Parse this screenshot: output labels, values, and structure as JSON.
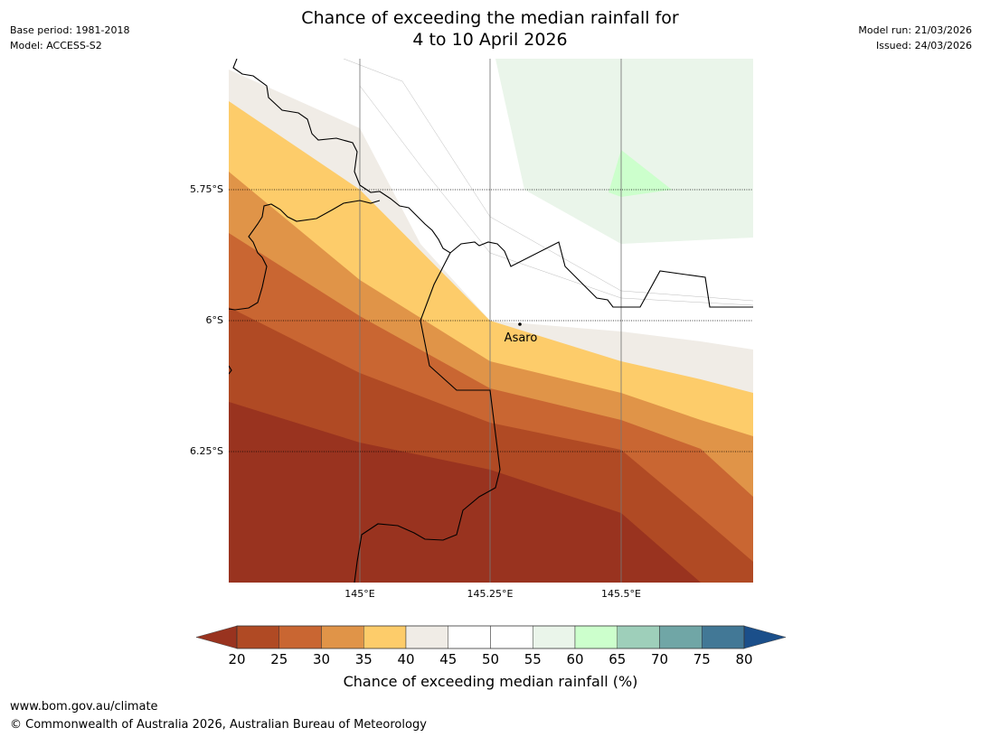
{
  "header": {
    "title_line1": "Chance of exceeding the median rainfall for",
    "title_line2": "4 to 10 April 2026",
    "base_period": "Base period: 1981-2018",
    "model": "Model: ACCESS-S2",
    "model_run": "Model run: 21/03/2026",
    "issued": "Issued: 24/03/2026"
  },
  "map": {
    "lat_labels": [
      "5.75°S",
      "6°S",
      "6.25°S"
    ],
    "lon_labels": [
      "145°E",
      "145.25°E",
      "145.5°E"
    ],
    "place_label": "Asaro"
  },
  "colorbar": {
    "label": "Chance of exceeding median rainfall (%)",
    "ticks": [
      "20",
      "25",
      "30",
      "35",
      "40",
      "45",
      "50",
      "55",
      "60",
      "65",
      "70",
      "75",
      "80"
    ],
    "colors": {
      "under": "#99331f",
      "20-25": "#b04a24",
      "25-30": "#c96632",
      "30-35": "#e09448",
      "35-40": "#fdcc6a",
      "40-45": "#f0ece6",
      "45-50": "#ffffff",
      "50-55": "#ffffff",
      "55-60": "#eaf5ea",
      "60-65": "#ccffcc",
      "65-70": "#9ecfba",
      "70-75": "#70a6a6",
      "75-80": "#427896",
      "over": "#1b4f8a"
    }
  },
  "footer": {
    "url": "www.bom.gov.au/climate",
    "copyright": "© Commonwealth of Australia 2026, Australian Bureau of Meteorology"
  }
}
